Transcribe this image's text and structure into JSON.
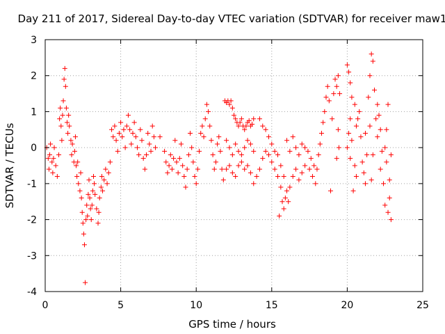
{
  "chart_data": {
    "type": "scatter",
    "title": "Day 211 of 2017, Sidereal Day-to-day VTEC variation (SDTVAR) for receiver maw1",
    "xlabel": "GPS time / hours",
    "ylabel": "SDTVAR / TECUs",
    "xlim": [
      0,
      25
    ],
    "ylim": [
      -4,
      3
    ],
    "x_ticks": [
      "0",
      "5",
      "10",
      "15",
      "20",
      "25"
    ],
    "y_ticks": [
      "3",
      "2",
      "1",
      "0",
      "-1",
      "-2",
      "-3",
      "-4"
    ],
    "x_tick_values": [
      0,
      5,
      10,
      15,
      20,
      25
    ],
    "y_tick_values": [
      3,
      2,
      1,
      0,
      -1,
      -2,
      -3,
      -4
    ],
    "grid": true,
    "marker": "+",
    "color": "#ff0000",
    "series": [
      {
        "name": "SDTVAR",
        "points": [
          [
            0.1,
            0.0
          ],
          [
            0.2,
            -0.3
          ],
          [
            0.25,
            -0.6
          ],
          [
            0.3,
            -0.2
          ],
          [
            0.35,
            0.1
          ],
          [
            0.45,
            -0.4
          ],
          [
            0.5,
            -0.7
          ],
          [
            0.55,
            -0.3
          ],
          [
            0.6,
            0.0
          ],
          [
            0.7,
            -0.5
          ],
          [
            0.8,
            -0.8
          ],
          [
            0.9,
            -0.2
          ],
          [
            0.95,
            0.8
          ],
          [
            1.0,
            1.1
          ],
          [
            1.05,
            0.6
          ],
          [
            1.1,
            0.2
          ],
          [
            1.15,
            0.9
          ],
          [
            1.2,
            1.3
          ],
          [
            1.25,
            1.9
          ],
          [
            1.3,
            2.2
          ],
          [
            1.35,
            1.7
          ],
          [
            1.4,
            1.1
          ],
          [
            1.45,
            0.7
          ],
          [
            1.5,
            0.4
          ],
          [
            1.55,
            0.9
          ],
          [
            1.6,
            0.6
          ],
          [
            1.7,
            0.2
          ],
          [
            1.75,
            -0.2
          ],
          [
            1.8,
            0.1
          ],
          [
            1.9,
            -0.4
          ],
          [
            1.95,
            -0.1
          ],
          [
            2.0,
            0.3
          ],
          [
            2.05,
            -0.5
          ],
          [
            2.1,
            -0.8
          ],
          [
            2.15,
            -0.4
          ],
          [
            2.2,
            -1.0
          ],
          [
            2.3,
            -1.2
          ],
          [
            2.35,
            -0.7
          ],
          [
            2.4,
            -1.4
          ],
          [
            2.45,
            -1.8
          ],
          [
            2.5,
            -2.1
          ],
          [
            2.55,
            -2.4
          ],
          [
            2.6,
            -2.7
          ],
          [
            2.65,
            -3.75
          ],
          [
            2.7,
            -2.0
          ],
          [
            2.75,
            -1.6
          ],
          [
            2.8,
            -1.9
          ],
          [
            2.85,
            -1.3
          ],
          [
            2.9,
            -0.9
          ],
          [
            2.95,
            -1.4
          ],
          [
            3.0,
            -1.7
          ],
          [
            3.05,
            -2.0
          ],
          [
            3.1,
            -1.6
          ],
          [
            3.15,
            -1.2
          ],
          [
            3.2,
            -0.8
          ],
          [
            3.25,
            -1.0
          ],
          [
            3.3,
            -1.3
          ],
          [
            3.4,
            -1.7
          ],
          [
            3.5,
            -2.1
          ],
          [
            3.55,
            -1.8
          ],
          [
            3.6,
            -1.4
          ],
          [
            3.7,
            -1.1
          ],
          [
            3.75,
            -0.8
          ],
          [
            3.8,
            -1.2
          ],
          [
            3.9,
            -0.9
          ],
          [
            4.0,
            -0.6
          ],
          [
            4.1,
            -1.0
          ],
          [
            4.2,
            -0.7
          ],
          [
            4.3,
            -0.4
          ],
          [
            4.4,
            0.5
          ],
          [
            4.5,
            0.3
          ],
          [
            4.6,
            0.6
          ],
          [
            4.7,
            0.2
          ],
          [
            4.8,
            -0.1
          ],
          [
            4.9,
            0.4
          ],
          [
            5.0,
            0.7
          ],
          [
            5.1,
            0.3
          ],
          [
            5.2,
            0.5
          ],
          [
            5.3,
            0.0
          ],
          [
            5.4,
            0.6
          ],
          [
            5.5,
            0.9
          ],
          [
            5.6,
            0.5
          ],
          [
            5.7,
            0.1
          ],
          [
            5.8,
            0.4
          ],
          [
            5.9,
            0.7
          ],
          [
            6.0,
            0.3
          ],
          [
            6.1,
            0.0
          ],
          [
            6.2,
            -0.2
          ],
          [
            6.3,
            0.5
          ],
          [
            6.4,
            0.2
          ],
          [
            6.5,
            -0.3
          ],
          [
            6.6,
            -0.6
          ],
          [
            6.7,
            -0.2
          ],
          [
            6.8,
            0.4
          ],
          [
            6.9,
            0.1
          ],
          [
            7.0,
            -0.1
          ],
          [
            7.1,
            0.6
          ],
          [
            7.2,
            0.3
          ],
          [
            7.3,
            0.0
          ],
          [
            7.6,
            0.3
          ],
          [
            7.9,
            -0.1
          ],
          [
            8.0,
            -0.4
          ],
          [
            8.1,
            -0.7
          ],
          [
            8.2,
            -0.5
          ],
          [
            8.3,
            -0.2
          ],
          [
            8.4,
            -0.6
          ],
          [
            8.5,
            -0.3
          ],
          [
            8.6,
            0.2
          ],
          [
            8.7,
            -0.4
          ],
          [
            8.8,
            -0.7
          ],
          [
            8.9,
            -0.3
          ],
          [
            9.0,
            0.1
          ],
          [
            9.1,
            -0.5
          ],
          [
            9.2,
            -0.8
          ],
          [
            9.3,
            -1.1
          ],
          [
            9.4,
            -0.6
          ],
          [
            9.5,
            -0.2
          ],
          [
            9.6,
            0.4
          ],
          [
            9.7,
            0.0
          ],
          [
            9.8,
            -0.4
          ],
          [
            9.9,
            -0.8
          ],
          [
            10.0,
            -1.0
          ],
          [
            10.1,
            -0.6
          ],
          [
            10.2,
            -0.1
          ],
          [
            10.3,
            0.4
          ],
          [
            10.4,
            0.6
          ],
          [
            10.5,
            0.3
          ],
          [
            10.6,
            0.8
          ],
          [
            10.7,
            1.2
          ],
          [
            10.8,
            1.0
          ],
          [
            10.9,
            0.6
          ],
          [
            11.0,
            0.2
          ],
          [
            11.1,
            -0.2
          ],
          [
            11.2,
            -0.6
          ],
          [
            11.3,
            -0.4
          ],
          [
            11.4,
            0.1
          ],
          [
            11.5,
            0.3
          ],
          [
            11.6,
            -0.1
          ],
          [
            11.7,
            -0.6
          ],
          [
            11.8,
            -0.9
          ],
          [
            11.9,
            1.3
          ],
          [
            12.0,
            1.25
          ],
          [
            12.1,
            1.3
          ],
          [
            12.2,
            1.2
          ],
          [
            12.3,
            1.3
          ],
          [
            12.4,
            1.1
          ],
          [
            12.5,
            0.9
          ],
          [
            12.6,
            0.8
          ],
          [
            12.7,
            0.7
          ],
          [
            12.8,
            0.6
          ],
          [
            12.9,
            0.7
          ],
          [
            13.0,
            0.8
          ],
          [
            13.1,
            0.6
          ],
          [
            13.2,
            0.5
          ],
          [
            13.3,
            0.6
          ],
          [
            13.4,
            0.7
          ],
          [
            13.5,
            0.75
          ],
          [
            13.6,
            0.6
          ],
          [
            13.7,
            0.65
          ],
          [
            13.8,
            0.8
          ],
          [
            12.0,
            0.2
          ],
          [
            12.2,
            0.0
          ],
          [
            12.4,
            -0.2
          ],
          [
            12.6,
            0.1
          ],
          [
            12.8,
            -0.1
          ],
          [
            13.0,
            -0.2
          ],
          [
            13.2,
            0.0
          ],
          [
            13.4,
            0.2
          ],
          [
            13.6,
            0.1
          ],
          [
            13.8,
            -0.1
          ],
          [
            12.0,
            -0.6
          ],
          [
            12.2,
            -0.5
          ],
          [
            12.4,
            -0.7
          ],
          [
            12.6,
            -0.8
          ],
          [
            12.8,
            -0.5
          ],
          [
            13.0,
            -0.4
          ],
          [
            13.2,
            -0.6
          ],
          [
            13.4,
            -0.5
          ],
          [
            13.6,
            -0.7
          ],
          [
            13.8,
            -1.0
          ],
          [
            14.0,
            -0.8
          ],
          [
            14.2,
            -0.6
          ],
          [
            14.4,
            -0.3
          ],
          [
            14.6,
            -0.1
          ],
          [
            14.8,
            -0.2
          ],
          [
            15.0,
            -0.4
          ],
          [
            15.2,
            -0.6
          ],
          [
            15.4,
            -0.8
          ],
          [
            15.6,
            -1.1
          ],
          [
            15.7,
            -1.5
          ],
          [
            15.8,
            -1.7
          ],
          [
            15.9,
            -1.4
          ],
          [
            16.0,
            -1.2
          ],
          [
            16.1,
            -1.5
          ],
          [
            16.2,
            -1.1
          ],
          [
            16.4,
            -0.8
          ],
          [
            16.6,
            -0.6
          ],
          [
            16.8,
            -0.9
          ],
          [
            17.0,
            -0.7
          ],
          [
            17.2,
            -0.5
          ],
          [
            14.2,
            0.8
          ],
          [
            14.4,
            0.6
          ],
          [
            14.6,
            0.5
          ],
          [
            14.8,
            0.3
          ],
          [
            15.0,
            0.1
          ],
          [
            15.2,
            -0.1
          ],
          [
            15.4,
            -0.2
          ],
          [
            15.6,
            -0.5
          ],
          [
            15.8,
            -0.8
          ],
          [
            15.5,
            -1.9
          ],
          [
            16.0,
            0.2
          ],
          [
            16.2,
            -0.1
          ],
          [
            16.4,
            0.3
          ],
          [
            16.6,
            0.0
          ],
          [
            16.8,
            -0.2
          ],
          [
            17.0,
            0.1
          ],
          [
            17.2,
            0.0
          ],
          [
            17.4,
            -0.1
          ],
          [
            17.6,
            -0.3
          ],
          [
            17.8,
            -0.5
          ],
          [
            17.5,
            -0.6
          ],
          [
            17.7,
            -0.8
          ],
          [
            17.9,
            -1.0
          ],
          [
            18.0,
            -0.6
          ],
          [
            18.1,
            -0.2
          ],
          [
            18.2,
            0.1
          ],
          [
            18.3,
            0.4
          ],
          [
            18.4,
            0.7
          ],
          [
            18.5,
            1.0
          ],
          [
            18.6,
            1.4
          ],
          [
            18.7,
            1.7
          ],
          [
            18.8,
            1.3
          ],
          [
            18.9,
            -1.2
          ],
          [
            19.0,
            0.8
          ],
          [
            19.1,
            1.5
          ],
          [
            19.2,
            1.9
          ],
          [
            19.3,
            1.7
          ],
          [
            19.4,
            2.0
          ],
          [
            19.5,
            1.5
          ],
          [
            19.45,
            0.0
          ],
          [
            19.4,
            0.5
          ],
          [
            19.3,
            -0.3
          ],
          [
            20.0,
            2.3
          ],
          [
            20.1,
            2.1
          ],
          [
            20.2,
            1.8
          ],
          [
            20.3,
            1.4
          ],
          [
            20.2,
            0.8
          ],
          [
            20.1,
            0.4
          ],
          [
            20.0,
            0.0
          ],
          [
            20.2,
            -0.3
          ],
          [
            20.4,
            -1.2
          ],
          [
            20.5,
            1.2
          ],
          [
            20.6,
            0.6
          ],
          [
            20.8,
            1.0
          ],
          [
            20.9,
            0.3
          ],
          [
            21.0,
            -0.4
          ],
          [
            21.1,
            -0.7
          ],
          [
            21.2,
            0.4
          ],
          [
            21.3,
            -0.2
          ],
          [
            21.4,
            1.4
          ],
          [
            21.5,
            2.0
          ],
          [
            21.6,
            2.6
          ],
          [
            21.7,
            2.4
          ],
          [
            21.8,
            1.6
          ],
          [
            21.9,
            0.8
          ],
          [
            22.0,
            0.3
          ],
          [
            22.1,
            0.9
          ],
          [
            22.2,
            0.5
          ],
          [
            22.3,
            -0.1
          ],
          [
            22.4,
            -1.0
          ],
          [
            22.5,
            -1.6
          ],
          [
            22.6,
            -0.4
          ],
          [
            22.7,
            -1.8
          ],
          [
            22.8,
            -1.4
          ],
          [
            22.9,
            -2.0
          ],
          [
            22.8,
            -0.9
          ],
          [
            22.7,
            1.2
          ],
          [
            22.9,
            -0.2
          ],
          [
            22.6,
            0.5
          ],
          [
            22.5,
            0.0
          ],
          [
            20.3,
            0.2
          ],
          [
            20.5,
            -0.5
          ],
          [
            20.7,
            0.8
          ],
          [
            21.5,
            0.6
          ],
          [
            21.7,
            -0.2
          ],
          [
            22.0,
            1.2
          ],
          [
            21.2,
            -1.0
          ],
          [
            21.6,
            -0.9
          ],
          [
            22.2,
            -0.6
          ],
          [
            20.6,
            -0.8
          ]
        ]
      }
    ]
  }
}
